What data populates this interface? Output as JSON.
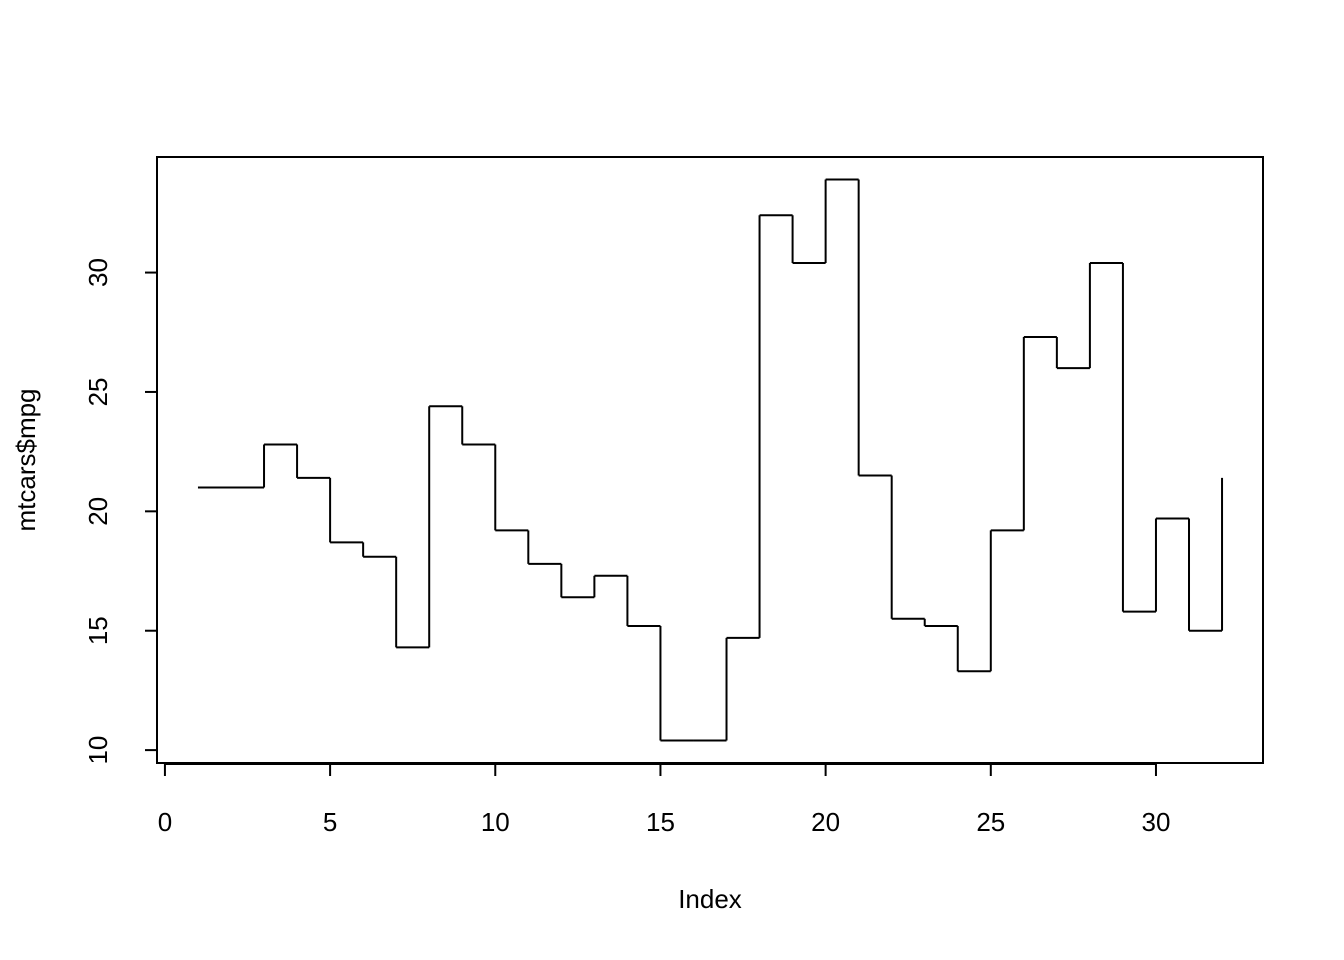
{
  "chart_data": {
    "type": "step",
    "x_label": "Index",
    "y_label": "mtcars$mpg",
    "x": [
      1,
      2,
      3,
      4,
      5,
      6,
      7,
      8,
      9,
      10,
      11,
      12,
      13,
      14,
      15,
      16,
      17,
      18,
      19,
      20,
      21,
      22,
      23,
      24,
      25,
      26,
      27,
      28,
      29,
      30,
      31,
      32
    ],
    "values": [
      21.0,
      21.0,
      22.8,
      21.4,
      18.7,
      18.1,
      14.3,
      24.4,
      22.8,
      19.2,
      17.8,
      16.4,
      17.3,
      15.2,
      10.4,
      10.4,
      14.7,
      32.4,
      30.4,
      33.9,
      21.5,
      15.5,
      15.2,
      13.3,
      19.2,
      27.3,
      26.0,
      30.4,
      15.8,
      19.7,
      15.0,
      21.4
    ],
    "color": "#000000",
    "xlim": [
      -0.24,
      33.24
    ],
    "xticks": [
      0,
      5,
      10,
      15,
      20,
      25,
      30
    ],
    "ylim": [
      9.46,
      34.84
    ],
    "yticks": [
      10,
      15,
      20,
      25,
      30
    ],
    "grid": false
  }
}
